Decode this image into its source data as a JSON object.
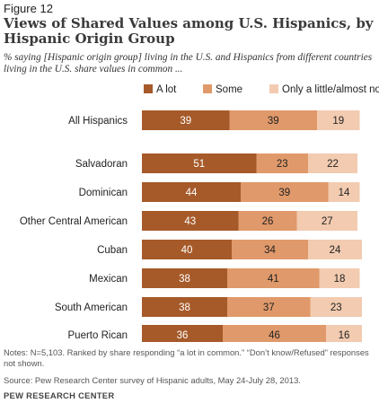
{
  "figure_label": "Figure 12",
  "chart_data": {
    "type": "bar",
    "stacked": true,
    "orientation": "horizontal",
    "title": "Views of Shared Values among U.S. Hispanics, by Hispanic Origin Group",
    "subtitle": "% saying [Hispanic origin group] living in the U.S. and Hispanics from different countries living in the U.S. share values in common ...",
    "categories": [
      "All Hispanics",
      "Salvadoran",
      "Dominican",
      "Other Central American",
      "Cuban",
      "Mexican",
      "South American",
      "Puerto Rican"
    ],
    "series": [
      {
        "name": "A lot",
        "color": "#a65a29",
        "values": [
          39,
          51,
          44,
          43,
          40,
          38,
          38,
          36
        ]
      },
      {
        "name": "Some",
        "color": "#e0996a",
        "values": [
          39,
          23,
          39,
          26,
          34,
          41,
          37,
          46
        ]
      },
      {
        "name": "Only a little/almost nothing",
        "color": "#f2cbb0",
        "values": [
          19,
          22,
          14,
          27,
          24,
          18,
          23,
          16
        ]
      }
    ],
    "legend_position": "top",
    "grid": false
  },
  "notes": "Notes: N=5,103. Ranked by share responding “a lot in common.” “Don’t know/Refused” responses not shown.",
  "source": "Source: Pew Research Center survey of Hispanic adults, May 24-July 28, 2013.",
  "footer": "PEW RESEARCH CENTER"
}
